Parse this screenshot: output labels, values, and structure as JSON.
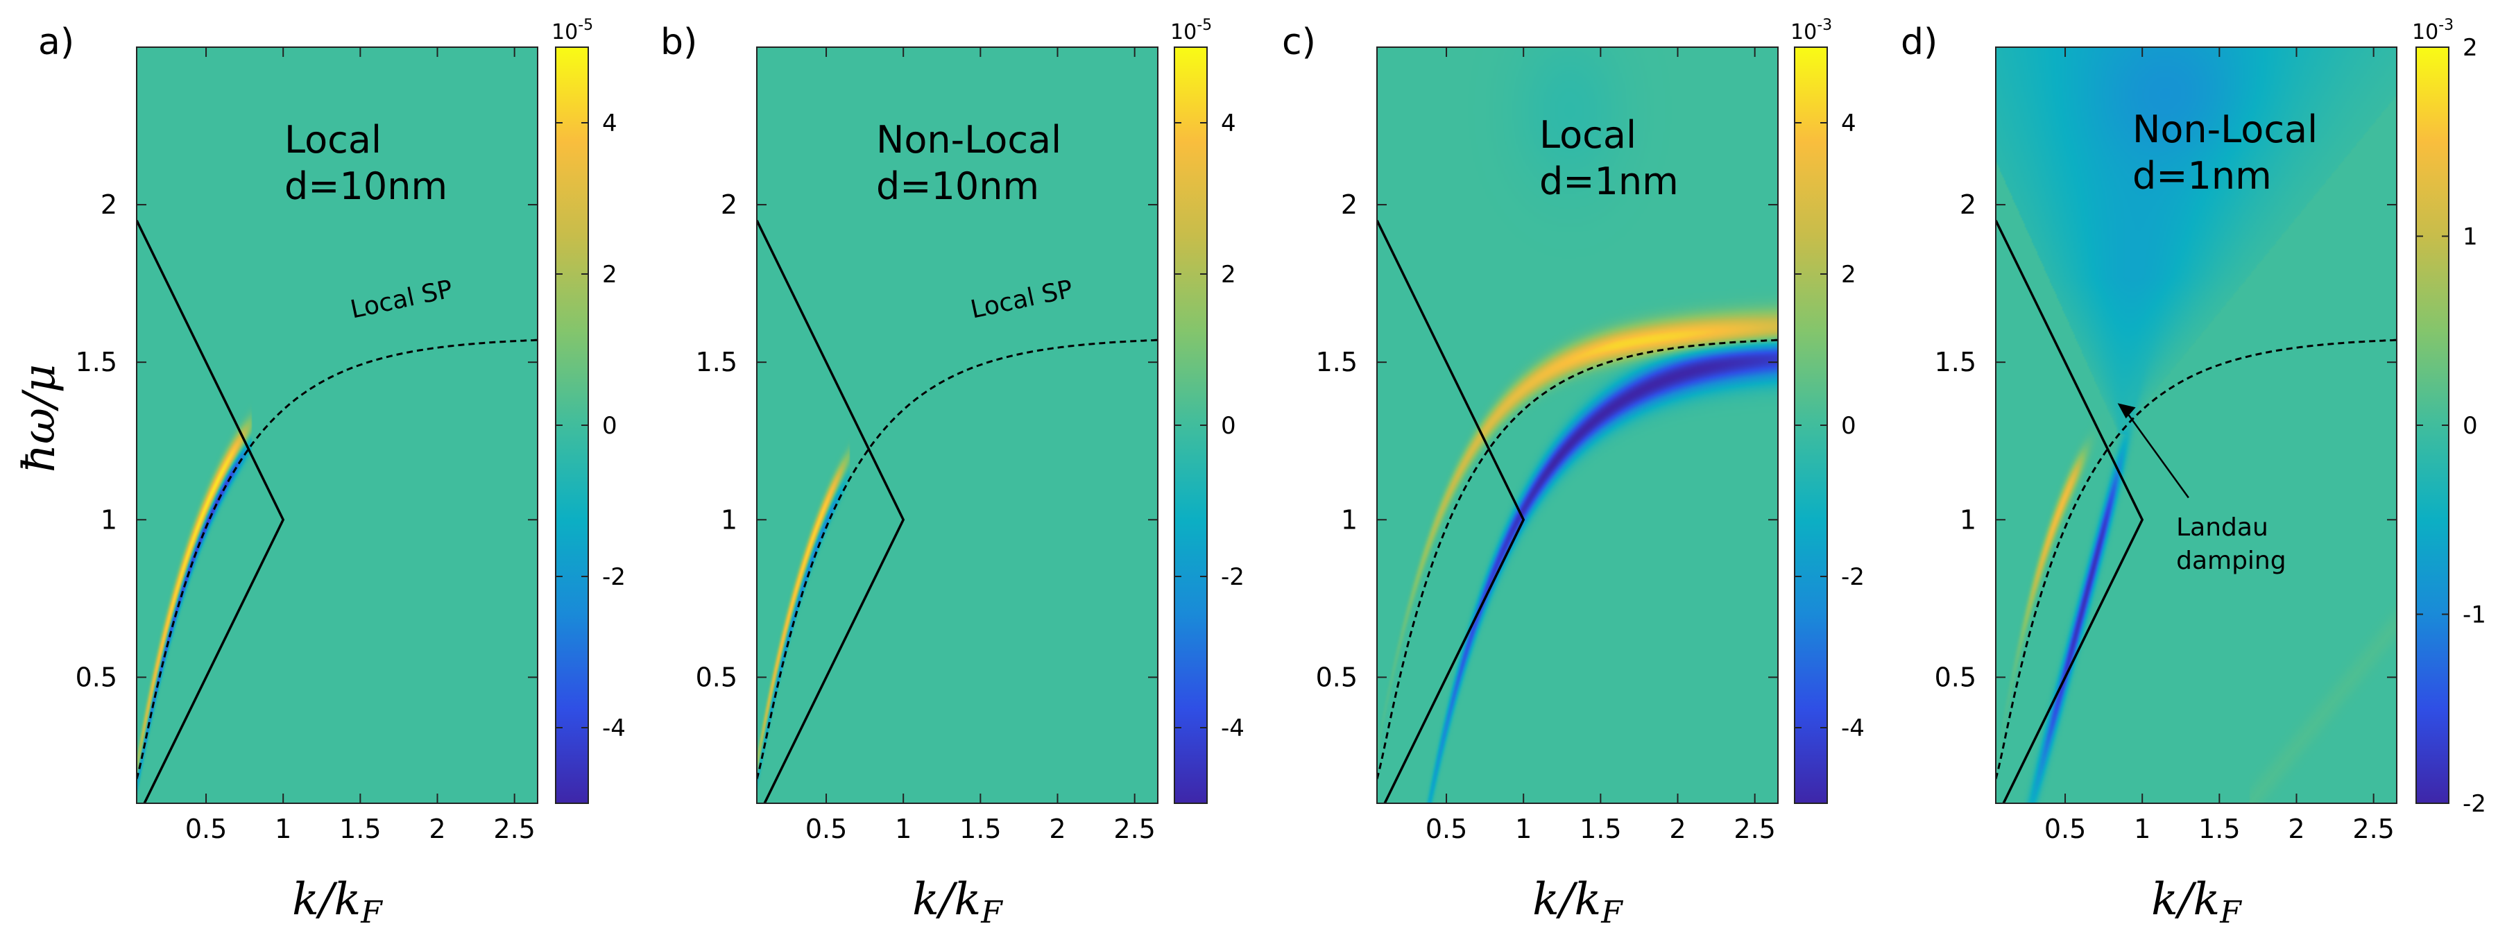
{
  "chart_data": [
    {
      "type": "heatmap",
      "panel": "a)",
      "title": [
        "Local",
        "d=10nm"
      ],
      "xlabel": "k/k_F",
      "ylabel": "ħω/μ",
      "xlim": [
        0.05,
        2.65
      ],
      "ylim": [
        0.1,
        2.5
      ],
      "xticks": [
        "0.5",
        "1",
        "1.5",
        "2",
        "2.5"
      ],
      "yticks": [
        "0.5",
        "1",
        "1.5",
        "2"
      ],
      "colorbar": {
        "exponent": "10",
        "power": "-5",
        "range": [
          -5,
          5
        ],
        "ticks": [
          "-4",
          "-2",
          "0",
          "2",
          "4"
        ]
      },
      "curve_label": "Local SP",
      "mode": {
        "type": "pos_over_neg",
        "x_end": 0.75,
        "offset": 0.04,
        "pos_amp": 0.95,
        "neg_amp": 0.9,
        "width": 0.035
      }
    },
    {
      "type": "heatmap",
      "panel": "b)",
      "title": [
        "Non-Local",
        "d=10nm"
      ],
      "xlabel": "k/k_F",
      "ylabel": "",
      "xlim": [
        0.05,
        2.65
      ],
      "ylim": [
        0.1,
        2.5
      ],
      "xticks": [
        "0.5",
        "1",
        "1.5",
        "2",
        "2.5"
      ],
      "yticks": [
        "0.5",
        "1",
        "1.5",
        "2"
      ],
      "colorbar": {
        "exponent": "10",
        "power": "-5",
        "range": [
          -5,
          5
        ],
        "ticks": [
          "-4",
          "-2",
          "0",
          "2",
          "4"
        ]
      },
      "curve_label": "Local SP",
      "mode": {
        "type": "pos_over_neg",
        "x_end": 0.6,
        "offset": 0.05,
        "pos_amp": 0.9,
        "neg_amp": 0.55,
        "width": 0.03
      }
    },
    {
      "type": "heatmap",
      "panel": "c)",
      "title": [
        "Local",
        "d=1nm"
      ],
      "xlabel": "k/k_F",
      "ylabel": "",
      "xlim": [
        0.05,
        2.65
      ],
      "ylim": [
        0.1,
        2.5
      ],
      "xticks": [
        "0.5",
        "1",
        "1.5",
        "2",
        "2.5"
      ],
      "yticks": [
        "0.5",
        "1",
        "1.5",
        "2"
      ],
      "colorbar": {
        "exponent": "10",
        "power": "-3",
        "range": [
          -5,
          5
        ],
        "ticks": [
          "-4",
          "-2",
          "0",
          "2",
          "4"
        ]
      },
      "curve_label": "",
      "mode": {
        "type": "split",
        "x_end": 2.65,
        "omega_inf": 1.58,
        "x0": 0.52,
        "pos_amp": 0.85,
        "neg_amp": 1.0,
        "width": 0.04
      }
    },
    {
      "type": "heatmap",
      "panel": "d)",
      "title": [
        "Non-Local",
        "d=1nm"
      ],
      "xlabel": "k/k_F",
      "ylabel": "",
      "xlim": [
        0.05,
        2.65
      ],
      "ylim": [
        0.1,
        2.5
      ],
      "xticks": [
        "0.5",
        "1",
        "1.5",
        "2",
        "2.5"
      ],
      "yticks": [
        "0.5",
        "1",
        "1.5",
        "2"
      ],
      "colorbar": {
        "exponent": "10",
        "power": "-3",
        "range": [
          -2,
          2
        ],
        "ticks": [
          "-2",
          "-1",
          "0",
          "1",
          "2"
        ]
      },
      "curve_label": "",
      "annotation": [
        "Landau",
        "damping"
      ],
      "mode": {
        "type": "landau",
        "x_end": 0.85,
        "pos_amp": 0.75,
        "neg_amp": 0.95,
        "width": 0.04
      }
    }
  ],
  "colors": {
    "colormap_stops": [
      "#3e26a8",
      "#2f4fe5",
      "#1a8ad8",
      "#0cafc3",
      "#40bd9d",
      "#84c56c",
      "#c7bd4b",
      "#f9be3d",
      "#f9fb15"
    ],
    "background": "#3ab0a9",
    "line": "#000000"
  }
}
